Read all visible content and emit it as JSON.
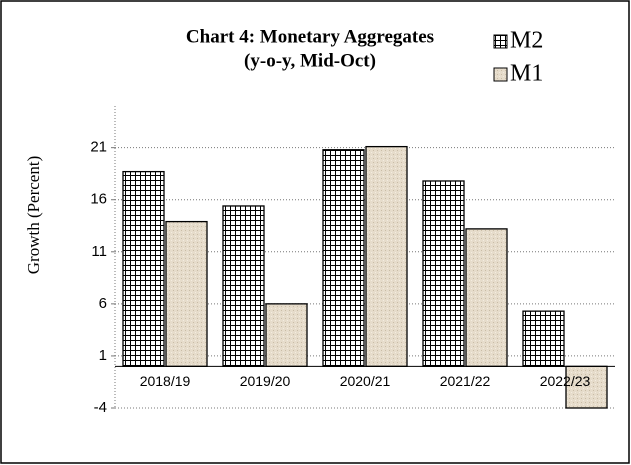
{
  "chart_data": {
    "type": "bar",
    "title": "Chart  4:  Monetary Aggregates",
    "subtitle": "(y-o-y,  Mid-Oct)",
    "y_label": "Growth (Percent)",
    "categories": [
      "2018/19",
      "2019/20",
      "2020/21",
      "2021/22",
      "2022/23"
    ],
    "series": [
      {
        "name": "M2",
        "color": "#ffffff",
        "values": [
          18.7,
          15.4,
          20.8,
          17.8,
          5.3
        ]
      },
      {
        "name": "M1",
        "color": "#e6dccb",
        "values": [
          13.9,
          6.0,
          21.1,
          13.2,
          -4.0
        ]
      }
    ],
    "ylim": [
      -4,
      25
    ],
    "yticks": [
      -4,
      1,
      6,
      11,
      16,
      21
    ],
    "grid": true,
    "legend": "top-right"
  }
}
